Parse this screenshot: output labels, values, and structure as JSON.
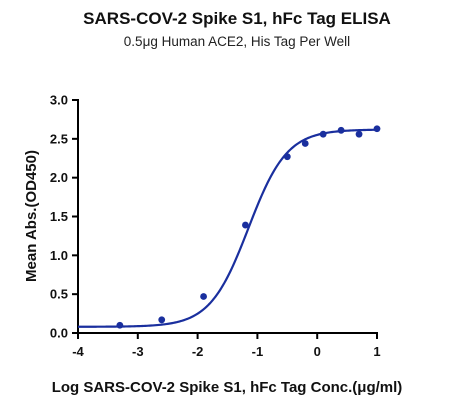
{
  "chart_data": {
    "type": "scatter",
    "title": "SARS-COV-2 Spike S1, hFc Tag ELISA",
    "subtitle": "0.5μg Human ACE2, His Tag Per Well",
    "xlabel": "Log SARS-COV-2 Spike S1, hFc Tag Conc.(μg/ml)",
    "ylabel": "Mean Abs.(OD450)",
    "xlim": [
      -4,
      1
    ],
    "ylim": [
      0,
      3.0
    ],
    "x_ticks": [
      "-4",
      "-3",
      "-2",
      "-1",
      "0",
      "1"
    ],
    "y_ticks": [
      "0.0",
      "0.5",
      "1.0",
      "1.5",
      "2.0",
      "2.5",
      "3.0"
    ],
    "grid": false,
    "series_color": "#1a2f9e",
    "points": [
      {
        "x": -3.3,
        "y": 0.1
      },
      {
        "x": -2.6,
        "y": 0.17
      },
      {
        "x": -1.9,
        "y": 0.47
      },
      {
        "x": -1.2,
        "y": 1.39
      },
      {
        "x": -0.5,
        "y": 2.27
      },
      {
        "x": -0.2,
        "y": 2.44
      },
      {
        "x": 0.1,
        "y": 2.56
      },
      {
        "x": 0.4,
        "y": 2.61
      },
      {
        "x": 0.7,
        "y": 2.56
      },
      {
        "x": 1.0,
        "y": 2.63
      }
    ],
    "fit": {
      "model": "4PL",
      "bottom": 0.08,
      "top": 2.62,
      "logEC50": -1.15,
      "hillslope": 1.35
    }
  }
}
